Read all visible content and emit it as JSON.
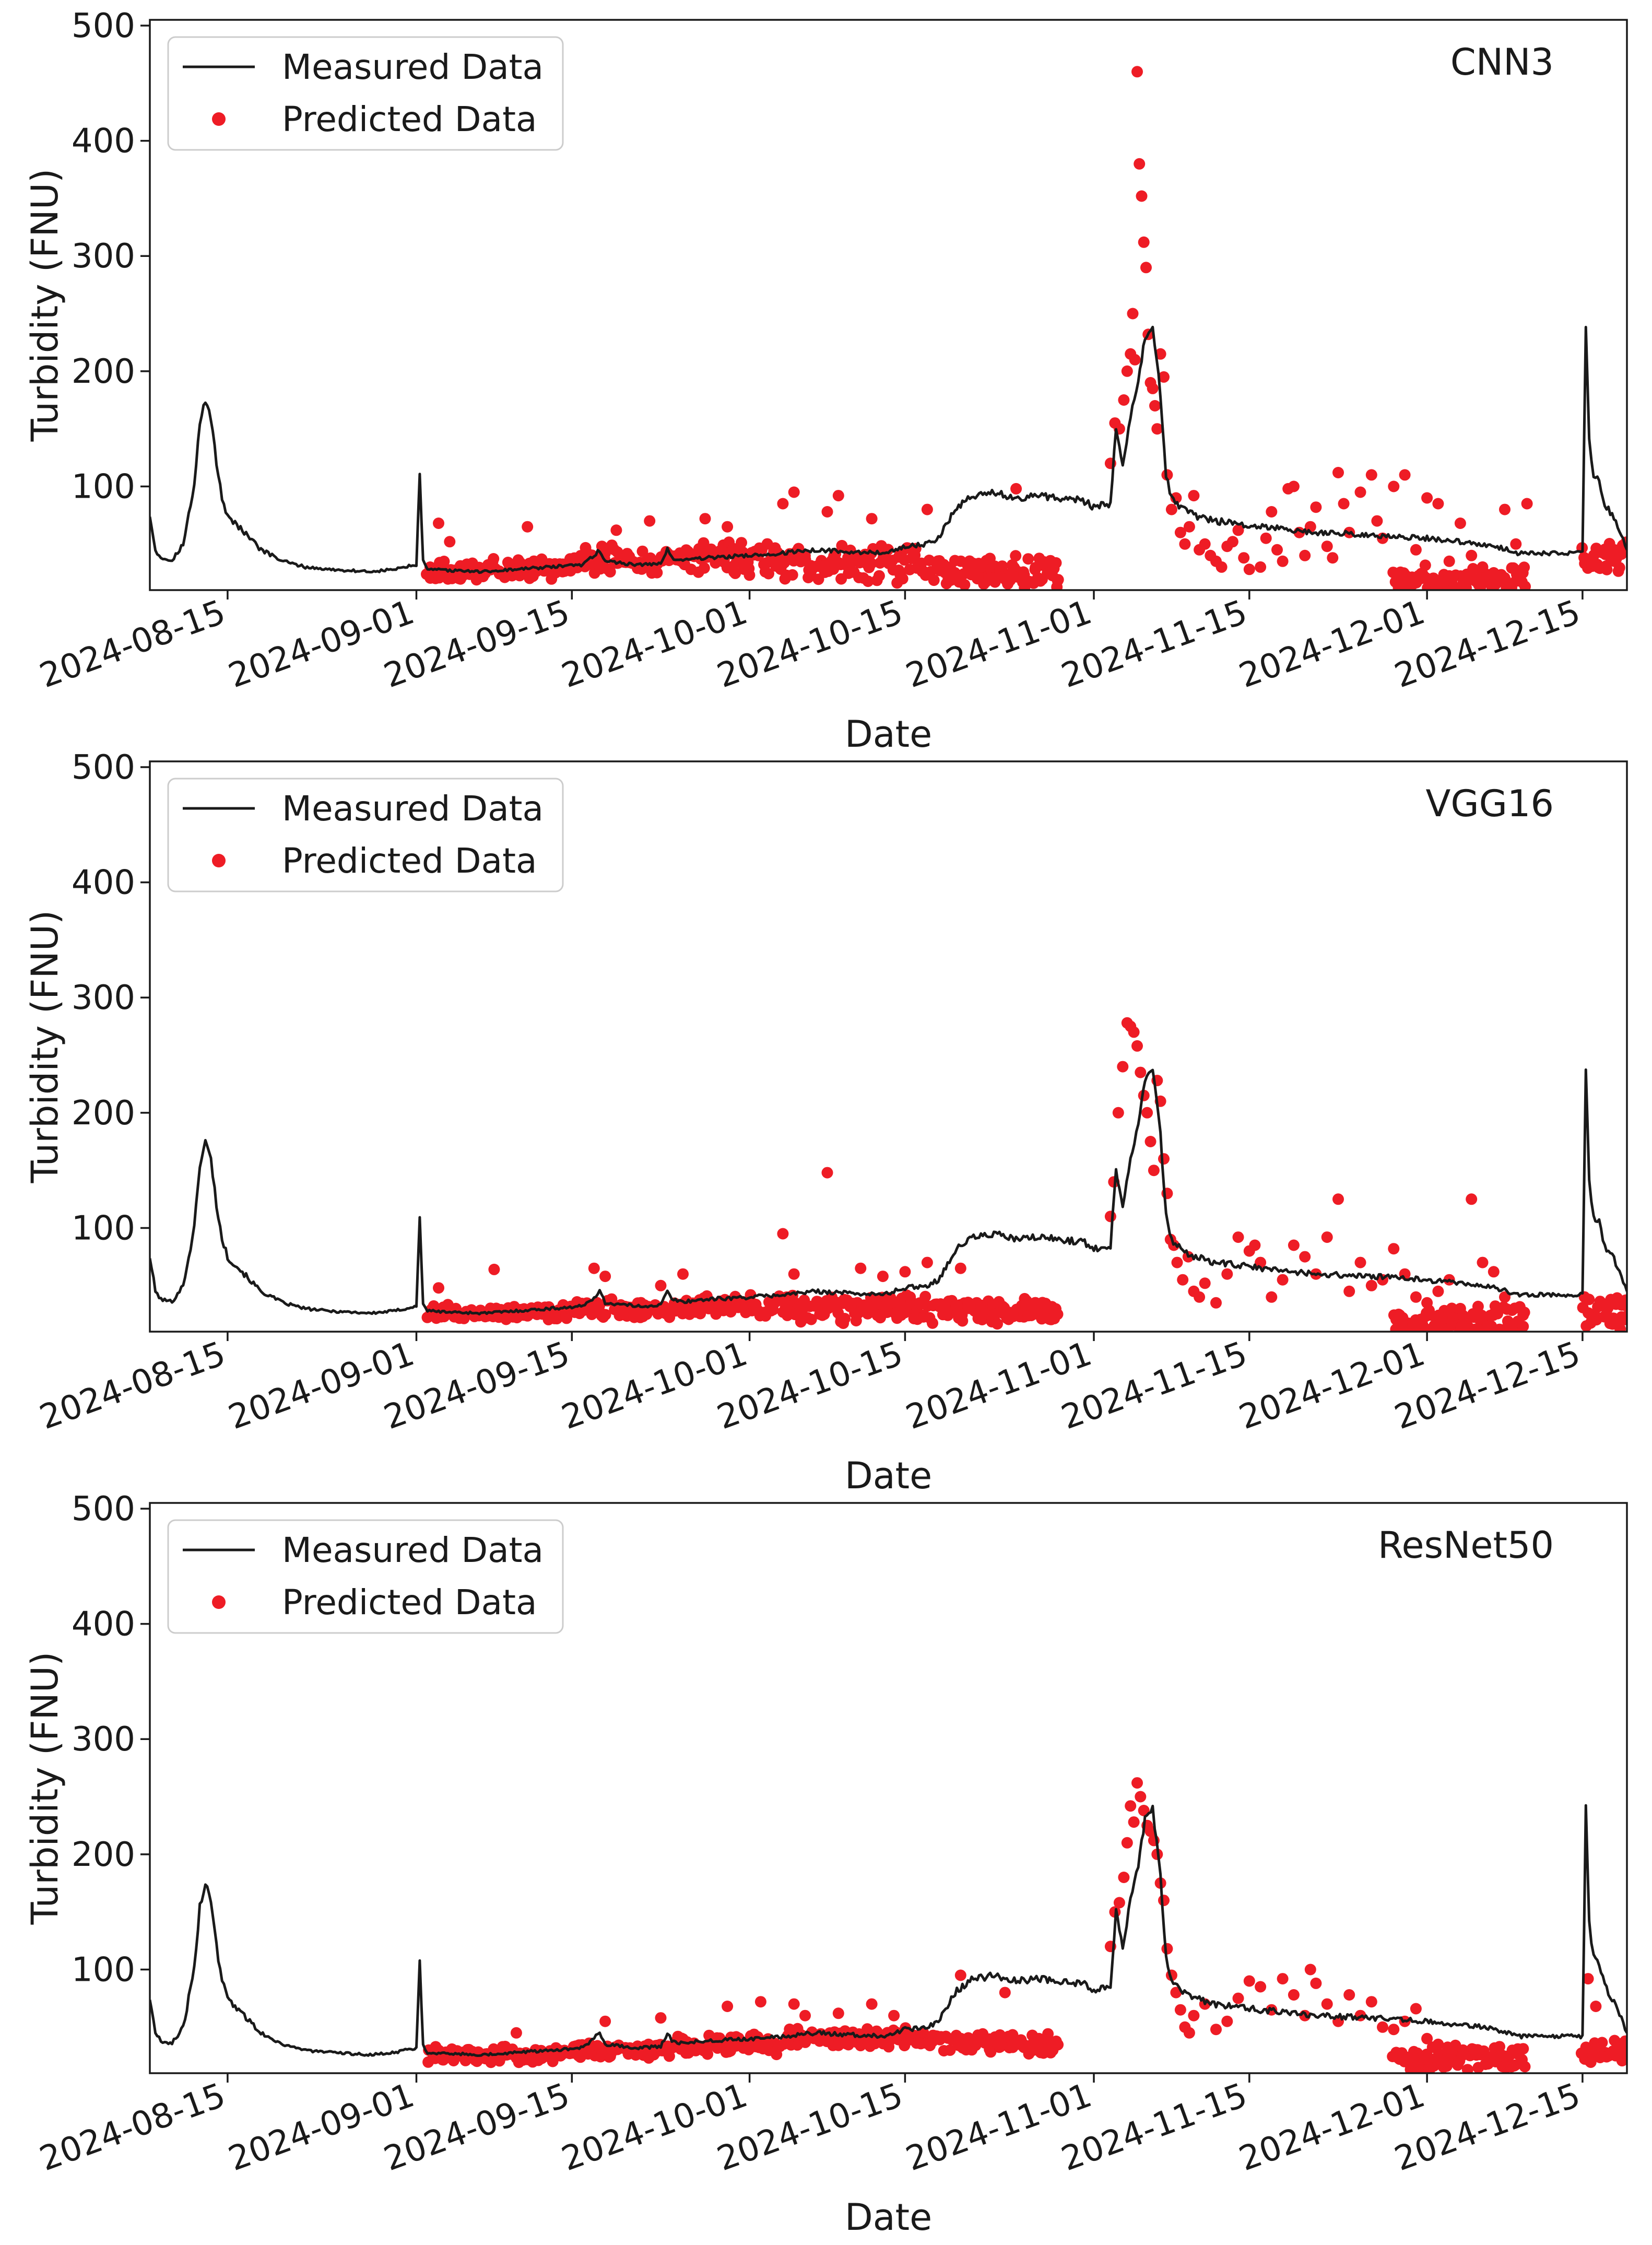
{
  "colors": {
    "measured": "#1a1a1a",
    "predicted": "#ee1c25",
    "axis": "#1a1a1a",
    "background": "#ffffff"
  },
  "shared": {
    "xlabel": "Date",
    "ylabel": "Turbidity (FNU)",
    "x_ticks": [
      "2024-08-15",
      "2024-09-01",
      "2024-09-15",
      "2024-10-01",
      "2024-10-15",
      "2024-11-01",
      "2024-11-15",
      "2024-12-01",
      "2024-12-15"
    ],
    "x_tick_days": [
      7,
      24,
      38,
      54,
      68,
      85,
      99,
      115,
      129
    ],
    "x_range_days": [
      0,
      133
    ],
    "x_day0_date": "2024-08-08",
    "y_ticks": [
      100,
      200,
      300,
      400,
      500
    ],
    "ylim": [
      10,
      505
    ],
    "legend": {
      "measured": "Measured Data",
      "predicted": "Predicted Data",
      "placement": "upper-left"
    }
  },
  "measured_series": {
    "name": "Measured Data",
    "note": "same measured turbidity series shown in all three panels",
    "x_day": [
      0,
      0.5,
      1,
      2,
      3,
      4,
      4.5,
      5,
      5.5,
      6,
      6.5,
      7,
      8,
      9,
      10,
      12,
      14,
      16,
      18,
      20,
      22,
      23,
      24,
      24.3,
      24.6,
      25,
      27,
      30,
      33,
      36,
      39,
      40,
      40.5,
      41,
      44,
      46,
      46.6,
      47,
      48,
      50,
      54,
      57,
      60,
      62,
      64,
      66,
      68,
      70,
      71,
      72.5,
      74,
      75,
      76,
      78,
      80,
      82,
      84,
      85,
      86.5,
      87,
      87.6,
      88.3,
      89,
      89.6,
      90.3,
      91,
      91.5,
      92,
      93,
      94,
      96,
      100,
      105,
      110,
      115,
      118,
      120,
      121,
      122,
      123,
      124,
      125,
      126,
      127,
      128,
      129,
      129.3,
      129.6,
      130,
      130.5,
      131,
      132,
      133
    ],
    "values": [
      75,
      45,
      38,
      36,
      50,
      100,
      155,
      175,
      160,
      120,
      90,
      75,
      65,
      55,
      45,
      35,
      30,
      28,
      27,
      26,
      28,
      30,
      32,
      108,
      35,
      28,
      27,
      26,
      28,
      30,
      32,
      40,
      45,
      35,
      32,
      33,
      45,
      38,
      36,
      38,
      40,
      42,
      45,
      44,
      43,
      42,
      48,
      50,
      55,
      80,
      92,
      93,
      95,
      90,
      92,
      90,
      88,
      82,
      85,
      150,
      120,
      160,
      190,
      230,
      240,
      180,
      110,
      90,
      80,
      75,
      70,
      65,
      60,
      58,
      55,
      52,
      50,
      48,
      46,
      42,
      42,
      42,
      42,
      42,
      42,
      42,
      240,
      140,
      110,
      105,
      85,
      70,
      45
    ]
  },
  "chart_data": [
    {
      "type": "line+scatter",
      "title": "CNN3",
      "xlabel": "Date",
      "ylabel": "Turbidity (FNU)",
      "ylim": [
        10,
        505
      ],
      "predicted": {
        "name": "Predicted Data",
        "segments": [
          {
            "start": 25,
            "end": 38,
            "step": 0.2,
            "base": 28,
            "spread": 14,
            "seed": 11
          },
          {
            "start": 38,
            "end": 47,
            "step": 0.2,
            "base": 36,
            "spread": 18,
            "seed": 12
          },
          {
            "start": 47,
            "end": 57,
            "step": 0.2,
            "base": 38,
            "spread": 22,
            "seed": 13
          },
          {
            "start": 57,
            "end": 70,
            "step": 0.2,
            "base": 32,
            "spread": 26,
            "seed": 14
          },
          {
            "start": 70,
            "end": 82,
            "step": 0.2,
            "base": 26,
            "spread": 20,
            "seed": 15
          },
          {
            "start": 112,
            "end": 124,
            "step": 0.2,
            "base": 18,
            "spread": 20,
            "seed": 16
          },
          {
            "start": 129,
            "end": 133,
            "step": 0.2,
            "base": 40,
            "spread": 22,
            "seed": 17
          }
        ],
        "x_day": [
          26,
          27,
          34,
          42,
          45,
          50,
          52,
          57,
          58,
          61,
          62,
          65,
          70,
          78,
          86.5,
          86.9,
          87.3,
          87.7,
          88,
          88.3,
          88.5,
          88.7,
          88.9,
          89.1,
          89.3,
          89.5,
          89.7,
          89.9,
          90.1,
          90.3,
          90.5,
          90.7,
          91,
          91.3,
          91.6,
          92,
          92.4,
          92.8,
          93.2,
          93.6,
          94,
          94.5,
          95,
          95.5,
          96,
          96.5,
          97,
          97.5,
          98,
          98.5,
          99,
          100,
          100.5,
          101,
          101.5,
          102,
          102.5,
          103,
          103.5,
          104,
          104.5,
          105,
          106,
          106.5,
          107,
          107.5,
          108,
          109,
          110,
          110.5,
          111,
          112,
          113,
          114,
          115,
          116,
          117,
          118,
          119,
          120,
          121,
          122,
          123,
          124
        ],
        "values": [
          68,
          52,
          65,
          62,
          70,
          72,
          65,
          85,
          95,
          78,
          92,
          72,
          80,
          98,
          120,
          155,
          150,
          175,
          200,
          215,
          250,
          210,
          460,
          380,
          352,
          312,
          290,
          232,
          190,
          185,
          170,
          150,
          215,
          195,
          110,
          80,
          90,
          60,
          50,
          65,
          92,
          45,
          50,
          40,
          35,
          30,
          48,
          52,
          62,
          38,
          28,
          30,
          55,
          78,
          45,
          35,
          98,
          100,
          60,
          40,
          65,
          82,
          48,
          38,
          112,
          85,
          60,
          95,
          110,
          70,
          55,
          100,
          110,
          45,
          90,
          85,
          35,
          68,
          40,
          30,
          25,
          80,
          50,
          85
        ]
      }
    },
    {
      "type": "line+scatter",
      "title": "VGG16",
      "xlabel": "Date",
      "ylabel": "Turbidity (FNU)",
      "ylim": [
        10,
        505
      ],
      "predicted": {
        "name": "Predicted Data",
        "segments": [
          {
            "start": 25,
            "end": 38,
            "step": 0.2,
            "base": 27,
            "spread": 10,
            "seed": 21
          },
          {
            "start": 38,
            "end": 47,
            "step": 0.2,
            "base": 30,
            "spread": 12,
            "seed": 22
          },
          {
            "start": 47,
            "end": 57,
            "step": 0.2,
            "base": 32,
            "spread": 14,
            "seed": 23
          },
          {
            "start": 57,
            "end": 70,
            "step": 0.2,
            "base": 30,
            "spread": 18,
            "seed": 24
          },
          {
            "start": 70,
            "end": 82,
            "step": 0.2,
            "base": 28,
            "spread": 16,
            "seed": 25
          },
          {
            "start": 112,
            "end": 124,
            "step": 0.2,
            "base": 20,
            "spread": 22,
            "seed": 26
          },
          {
            "start": 129,
            "end": 133,
            "step": 0.2,
            "base": 28,
            "spread": 22,
            "seed": 27
          }
        ],
        "x_day": [
          26,
          31,
          40,
          41,
          46,
          48,
          57,
          58,
          61,
          64,
          66,
          68,
          70,
          73,
          86.5,
          86.8,
          87.2,
          87.6,
          88,
          88.3,
          88.6,
          88.9,
          89.2,
          89.5,
          89.8,
          90.1,
          90.4,
          90.7,
          91,
          91.3,
          91.6,
          91.9,
          92.2,
          92.5,
          93,
          93.5,
          94,
          94.5,
          95,
          96,
          97,
          98,
          99,
          99.5,
          100,
          101,
          102,
          103,
          104,
          105,
          106,
          107,
          108,
          109,
          110,
          111,
          112,
          113,
          114,
          115,
          116,
          117,
          118,
          119,
          120,
          121,
          122
        ],
        "values": [
          48,
          64,
          65,
          58,
          50,
          60,
          95,
          60,
          148,
          65,
          58,
          62,
          70,
          65,
          110,
          140,
          200,
          240,
          278,
          275,
          270,
          258,
          235,
          215,
          200,
          175,
          150,
          228,
          210,
          160,
          130,
          90,
          85,
          70,
          55,
          75,
          45,
          40,
          52,
          35,
          60,
          92,
          80,
          85,
          70,
          40,
          55,
          85,
          75,
          60,
          92,
          125,
          45,
          70,
          50,
          55,
          82,
          60,
          40,
          35,
          45,
          55,
          30,
          125,
          70,
          62,
          40
        ]
      }
    },
    {
      "type": "line+scatter",
      "title": "ResNet50",
      "xlabel": "Date",
      "ylabel": "Turbidity (FNU)",
      "ylim": [
        10,
        505
      ],
      "predicted": {
        "name": "Predicted Data",
        "segments": [
          {
            "start": 25,
            "end": 38,
            "step": 0.2,
            "base": 26,
            "spread": 10,
            "seed": 31
          },
          {
            "start": 38,
            "end": 47,
            "step": 0.2,
            "base": 30,
            "spread": 12,
            "seed": 32
          },
          {
            "start": 47,
            "end": 57,
            "step": 0.2,
            "base": 36,
            "spread": 14,
            "seed": 33
          },
          {
            "start": 57,
            "end": 70,
            "step": 0.2,
            "base": 40,
            "spread": 14,
            "seed": 34
          },
          {
            "start": 70,
            "end": 82,
            "step": 0.2,
            "base": 36,
            "spread": 14,
            "seed": 35
          },
          {
            "start": 112,
            "end": 124,
            "step": 0.2,
            "base": 24,
            "spread": 18,
            "seed": 36
          },
          {
            "start": 129,
            "end": 133,
            "step": 0.2,
            "base": 28,
            "spread": 18,
            "seed": 37
          }
        ],
        "x_day": [
          33,
          41,
          46,
          52,
          55,
          58,
          59,
          62,
          65,
          67,
          73,
          77,
          86.5,
          86.9,
          87.3,
          87.7,
          88,
          88.3,
          88.6,
          88.9,
          89.2,
          89.5,
          89.8,
          90.1,
          90.4,
          90.7,
          91,
          91.3,
          91.6,
          92,
          92.4,
          92.8,
          93.2,
          93.6,
          94,
          95,
          96,
          97,
          98,
          99,
          100,
          101,
          102,
          103,
          104,
          104.5,
          105,
          106,
          107,
          108,
          109,
          110,
          111,
          112,
          113,
          114,
          115,
          116,
          117,
          129.5,
          130.2
        ],
        "values": [
          45,
          55,
          58,
          68,
          72,
          70,
          60,
          62,
          70,
          60,
          95,
          80,
          120,
          150,
          158,
          180,
          210,
          242,
          228,
          262,
          250,
          238,
          225,
          220,
          212,
          200,
          175,
          160,
          118,
          95,
          80,
          65,
          50,
          45,
          60,
          70,
          48,
          55,
          75,
          90,
          85,
          65,
          92,
          78,
          60,
          100,
          88,
          70,
          55,
          78,
          60,
          72,
          50,
          48,
          55,
          66,
          40,
          35,
          30,
          92,
          68
        ]
      }
    }
  ]
}
